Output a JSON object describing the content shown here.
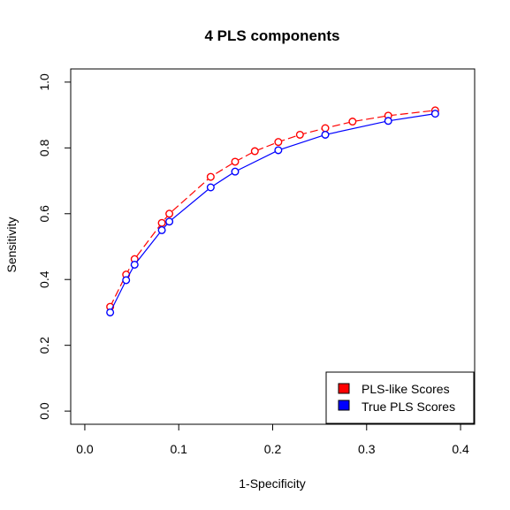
{
  "chart_data": {
    "type": "line",
    "title": "4 PLS components",
    "xlabel": "1-Specificity",
    "ylabel": "Sensitivity",
    "xlim": [
      -0.015,
      0.415
    ],
    "ylim": [
      -0.04,
      1.04
    ],
    "x_ticks": [
      "0.0",
      "0.1",
      "0.2",
      "0.3",
      "0.4"
    ],
    "y_ticks": [
      "0.0",
      "0.2",
      "0.4",
      "0.6",
      "0.8",
      "1.0"
    ],
    "x_tick_values": [
      0.0,
      0.1,
      0.2,
      0.3,
      0.4
    ],
    "y_tick_values": [
      0.0,
      0.2,
      0.4,
      0.6,
      0.8,
      1.0
    ],
    "grid": false,
    "legend_position": "bottom-right",
    "series": [
      {
        "name": "PLS-like Scores",
        "color": "#ff0000",
        "line_style": "dashed",
        "marker": "open-circle",
        "x": [
          0.027,
          0.044,
          0.053,
          0.082,
          0.09,
          0.134,
          0.16,
          0.181,
          0.206,
          0.229,
          0.256,
          0.285,
          0.323,
          0.373
        ],
        "y": [
          0.317,
          0.415,
          0.462,
          0.572,
          0.6,
          0.712,
          0.758,
          0.79,
          0.818,
          0.84,
          0.86,
          0.88,
          0.898,
          0.914
        ]
      },
      {
        "name": "True PLS Scores",
        "color": "#0000ff",
        "line_style": "solid",
        "marker": "open-circle",
        "x": [
          0.027,
          0.044,
          0.053,
          0.082,
          0.09,
          0.134,
          0.16,
          0.206,
          0.256,
          0.323,
          0.373
        ],
        "y": [
          0.3,
          0.398,
          0.445,
          0.55,
          0.576,
          0.68,
          0.728,
          0.793,
          0.84,
          0.882,
          0.904
        ]
      }
    ]
  }
}
